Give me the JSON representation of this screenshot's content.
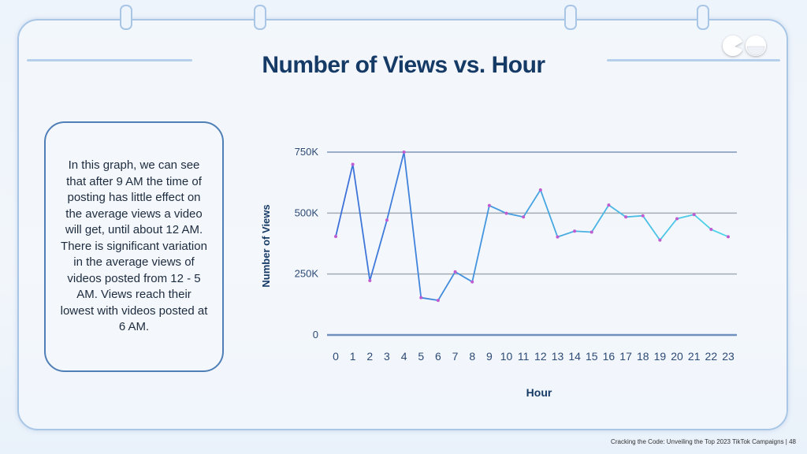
{
  "slide": {
    "title": "Number of Views vs. Hour",
    "note": "In this graph, we can see that after 9 AM the time of posting has little effect on the average views a video will get, until about 12 AM. There is significant variation in the average views of videos posted from 12 - 5 AM. Views reach their lowest with videos posted at 6 AM.",
    "footer": "Cracking the Code: Unveiling the Top 2023 TikTok Campaigns | 48",
    "logo_icon": "pacman-eyes-logo"
  },
  "colors": {
    "title": "#163a66",
    "line_start": "#3d6fd8",
    "line_end": "#4fd6e8",
    "marker": "#c05bd0",
    "grid": "#9aa7b6",
    "axis": "#6f8fbf"
  },
  "chart_data": {
    "type": "line",
    "title": "",
    "xlabel": "Hour",
    "ylabel": "Number of Views",
    "x": [
      0,
      1,
      2,
      3,
      4,
      5,
      6,
      7,
      8,
      9,
      10,
      11,
      12,
      13,
      14,
      15,
      16,
      17,
      18,
      19,
      20,
      21,
      22,
      23
    ],
    "values": [
      404000,
      700000,
      223000,
      471000,
      750000,
      153000,
      142000,
      259000,
      218000,
      531000,
      499000,
      484000,
      595000,
      402000,
      426000,
      422000,
      533000,
      484000,
      489000,
      389000,
      477000,
      494000,
      433000,
      403000
    ],
    "ylim": [
      0,
      750000
    ],
    "yticks": [
      0,
      250000,
      500000,
      750000
    ],
    "ytick_labels": [
      "0",
      "250K",
      "500K",
      "750K"
    ],
    "xtick_labels": [
      "0",
      "1",
      "2",
      "3",
      "4",
      "5",
      "6",
      "7",
      "8",
      "9",
      "10",
      "11",
      "12",
      "13",
      "14",
      "15",
      "16",
      "17",
      "18",
      "19",
      "20",
      "21",
      "22",
      "23"
    ],
    "grid": true,
    "legend": "none"
  }
}
